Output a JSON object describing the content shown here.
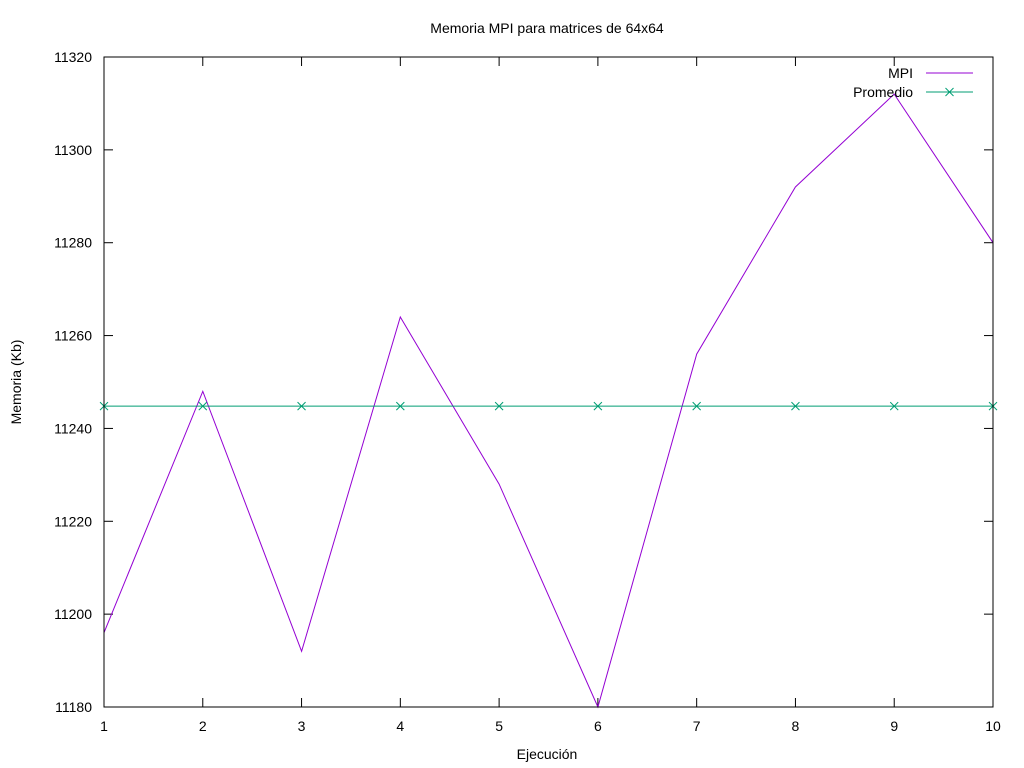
{
  "chart_data": {
    "type": "line",
    "title": "Memoria MPI para matrices de 64x64",
    "xlabel": "Ejecución",
    "ylabel": "Memoria (Kb)",
    "xlim": [
      1,
      10
    ],
    "ylim": [
      11180,
      11320
    ],
    "x_ticks": [
      "1",
      "2",
      "3",
      "4",
      "5",
      "6",
      "7",
      "8",
      "9",
      "10"
    ],
    "y_ticks": [
      "11180",
      "11200",
      "11220",
      "11240",
      "11260",
      "11280",
      "11300",
      "11320"
    ],
    "grid": false,
    "legend_position": "top-right",
    "x": [
      1,
      2,
      3,
      4,
      5,
      6,
      7,
      8,
      9,
      10
    ],
    "series": [
      {
        "name": "MPI",
        "color": "#9400d3",
        "marker": "none",
        "values": [
          11196,
          11248,
          11192,
          11264,
          11228,
          11180,
          11256,
          11292,
          11312,
          11280
        ]
      },
      {
        "name": "Promedio",
        "color": "#009e73",
        "marker": "x",
        "values": [
          11244.8,
          11244.8,
          11244.8,
          11244.8,
          11244.8,
          11244.8,
          11244.8,
          11244.8,
          11244.8,
          11244.8
        ]
      }
    ]
  }
}
